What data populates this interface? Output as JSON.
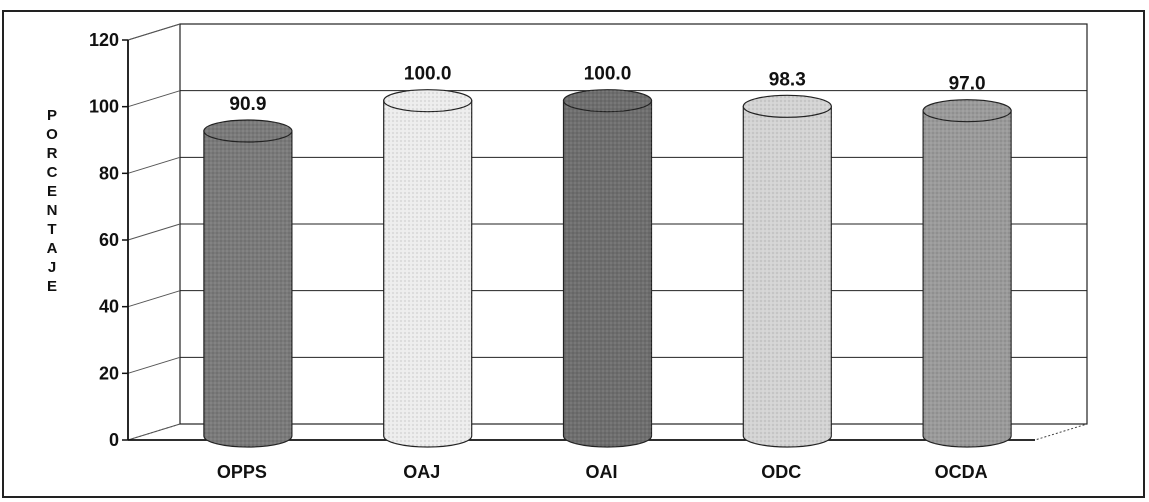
{
  "chart_data": {
    "type": "bar",
    "style": "3d-cylinder",
    "ylabel": "PORCENTAJE",
    "xlabel": "",
    "ylim": [
      0,
      120
    ],
    "yticks": [
      0,
      20,
      40,
      60,
      80,
      100,
      120
    ],
    "categories": [
      "OPPS",
      "OAJ",
      "OAI",
      "ODC",
      "OCDA"
    ],
    "values": [
      90.9,
      100.0,
      100.0,
      98.3,
      97.0
    ],
    "data_labels": [
      "90.9",
      "100.0",
      "100.0",
      "98.3",
      "97.0"
    ],
    "bar_colors": [
      "#7a7a7a",
      "#ededed",
      "#6e6e6e",
      "#d4d4d4",
      "#9a9a9a"
    ],
    "grid": true,
    "legend": "none"
  }
}
